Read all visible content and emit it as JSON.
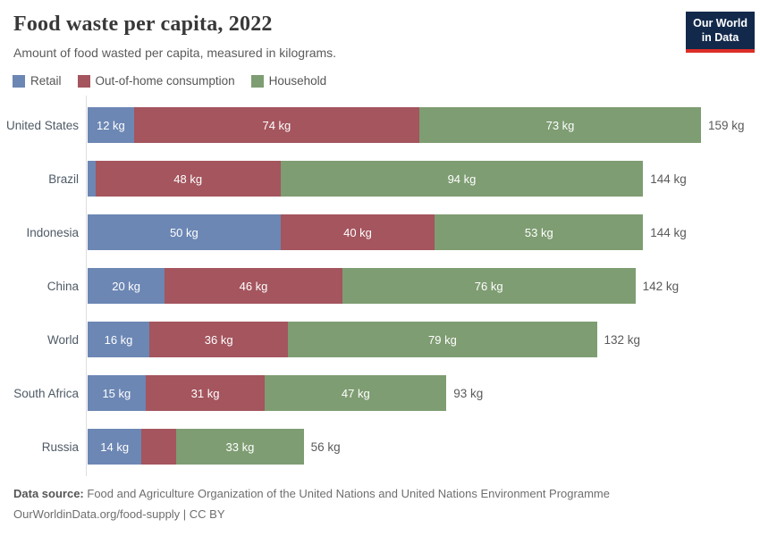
{
  "header": {
    "title": "Food waste per capita, 2022",
    "subtitle": "Amount of food wasted per capita, measured in kilograms.",
    "logo_line1": "Our World",
    "logo_line2": "in Data"
  },
  "colors": {
    "retail": "#6c87b4",
    "out_of_home": "#a4555e",
    "household": "#7e9d72",
    "logo_bg": "#12294b",
    "logo_stripe": "#dc2e27",
    "axis_line": "#dedede"
  },
  "legend": [
    {
      "label": "Retail",
      "color_key": "retail"
    },
    {
      "label": "Out-of-home consumption",
      "color_key": "out_of_home"
    },
    {
      "label": "Household",
      "color_key": "household"
    }
  ],
  "chart_data": {
    "type": "bar",
    "orientation": "horizontal",
    "stacked": true,
    "unit": "kg",
    "xlim": [
      0,
      159
    ],
    "grid": false,
    "legend_position": "top",
    "series": [
      "Retail",
      "Out-of-home consumption",
      "Household"
    ],
    "categories": [
      "United States",
      "Brazil",
      "Indonesia",
      "China",
      "World",
      "South Africa",
      "Russia"
    ],
    "rows": [
      {
        "category": "United States",
        "total": 159,
        "total_label": "159 kg",
        "segments": [
          {
            "series": "Retail",
            "value": 12,
            "label": "12 kg"
          },
          {
            "series": "Out-of-home consumption",
            "value": 74,
            "label": "74 kg"
          },
          {
            "series": "Household",
            "value": 73,
            "label": "73 kg"
          }
        ]
      },
      {
        "category": "Brazil",
        "total": 144,
        "total_label": "144 kg",
        "segments": [
          {
            "series": "Retail",
            "value": 2,
            "label": ""
          },
          {
            "series": "Out-of-home consumption",
            "value": 48,
            "label": "48 kg"
          },
          {
            "series": "Household",
            "value": 94,
            "label": "94 kg"
          }
        ]
      },
      {
        "category": "Indonesia",
        "total": 144,
        "total_label": "144 kg",
        "segments": [
          {
            "series": "Retail",
            "value": 50,
            "label": "50 kg"
          },
          {
            "series": "Out-of-home consumption",
            "value": 40,
            "label": "40 kg"
          },
          {
            "series": "Household",
            "value": 53,
            "label": "53 kg"
          }
        ]
      },
      {
        "category": "China",
        "total": 142,
        "total_label": "142 kg",
        "segments": [
          {
            "series": "Retail",
            "value": 20,
            "label": "20 kg"
          },
          {
            "series": "Out-of-home consumption",
            "value": 46,
            "label": "46 kg"
          },
          {
            "series": "Household",
            "value": 76,
            "label": "76 kg"
          }
        ]
      },
      {
        "category": "World",
        "total": 132,
        "total_label": "132 kg",
        "segments": [
          {
            "series": "Retail",
            "value": 16,
            "label": "16 kg"
          },
          {
            "series": "Out-of-home consumption",
            "value": 36,
            "label": "36 kg"
          },
          {
            "series": "Household",
            "value": 79,
            "label": "79 kg"
          }
        ]
      },
      {
        "category": "South Africa",
        "total": 93,
        "total_label": "93 kg",
        "segments": [
          {
            "series": "Retail",
            "value": 15,
            "label": "15 kg"
          },
          {
            "series": "Out-of-home consumption",
            "value": 31,
            "label": "31 kg"
          },
          {
            "series": "Household",
            "value": 47,
            "label": "47 kg"
          }
        ]
      },
      {
        "category": "Russia",
        "total": 56,
        "total_label": "56 kg",
        "segments": [
          {
            "series": "Retail",
            "value": 14,
            "label": "14 kg"
          },
          {
            "series": "Out-of-home consumption",
            "value": 9,
            "label": ""
          },
          {
            "series": "Household",
            "value": 33,
            "label": "33 kg"
          }
        ]
      }
    ]
  },
  "footer": {
    "source_label": "Data source:",
    "source_text": "Food and Agriculture Organization of the United Nations and United Nations Environment Programme",
    "citation": "OurWorldinData.org/food-supply | CC BY"
  }
}
